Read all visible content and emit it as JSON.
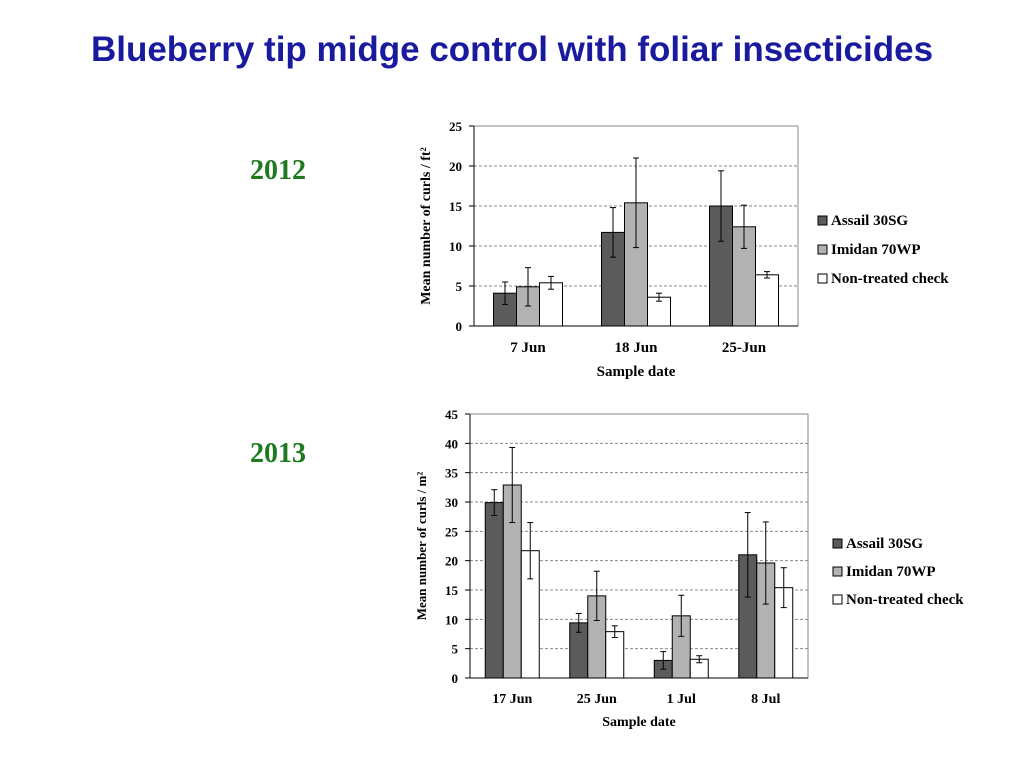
{
  "slide": {
    "title": "Blueberry tip midge control with foliar insecticides"
  },
  "colors": {
    "title": "#1a1a9e",
    "year_label": "#1f7a1f",
    "assail": "#5b5b5b",
    "imidan": "#b2b2b2",
    "check": "#ffffff"
  },
  "chart_data": [
    {
      "type": "bar",
      "year_label": "2012",
      "title": "",
      "xlabel": "Sample date",
      "ylabel": "Mean number of curls / ft²",
      "ylim": [
        0,
        25
      ],
      "yticks": [
        0,
        5,
        10,
        15,
        20,
        25
      ],
      "grid": true,
      "legend": "right",
      "categories": [
        "7 Jun",
        "18 Jun",
        "25-Jun"
      ],
      "series": [
        {
          "name": "Assail 30SG",
          "values": [
            4.1,
            11.7,
            15.0
          ],
          "errors": [
            1.4,
            3.1,
            4.4
          ],
          "color": "#5b5b5b"
        },
        {
          "name": "Imidan 70WP",
          "values": [
            4.9,
            15.4,
            12.4
          ],
          "errors": [
            2.4,
            5.6,
            2.7
          ],
          "color": "#b2b2b2"
        },
        {
          "name": "Non-treated check",
          "values": [
            5.4,
            3.6,
            6.4
          ],
          "errors": [
            0.8,
            0.5,
            0.4
          ],
          "color": "#ffffff"
        }
      ]
    },
    {
      "type": "bar",
      "year_label": "2013",
      "title": "",
      "xlabel": "Sample date",
      "ylabel": "Mean number of curls / m²",
      "ylim": [
        0,
        45
      ],
      "yticks": [
        0,
        5,
        10,
        15,
        20,
        25,
        30,
        35,
        40,
        45
      ],
      "grid": true,
      "legend": "right",
      "categories": [
        "17 Jun",
        "25 Jun",
        "1 Jul",
        "8 Jul"
      ],
      "series": [
        {
          "name": "Assail 30SG",
          "values": [
            29.9,
            9.4,
            3.0,
            21.0
          ],
          "errors": [
            2.2,
            1.6,
            1.5,
            7.2
          ],
          "color": "#5b5b5b"
        },
        {
          "name": "Imidan 70WP",
          "values": [
            32.9,
            14.0,
            10.6,
            19.6
          ],
          "errors": [
            6.4,
            4.2,
            3.5,
            7.0
          ],
          "color": "#b2b2b2"
        },
        {
          "name": "Non-treated check",
          "values": [
            21.7,
            7.9,
            3.2,
            15.4
          ],
          "errors": [
            4.8,
            1.0,
            0.6,
            3.4
          ],
          "color": "#ffffff"
        }
      ]
    }
  ]
}
